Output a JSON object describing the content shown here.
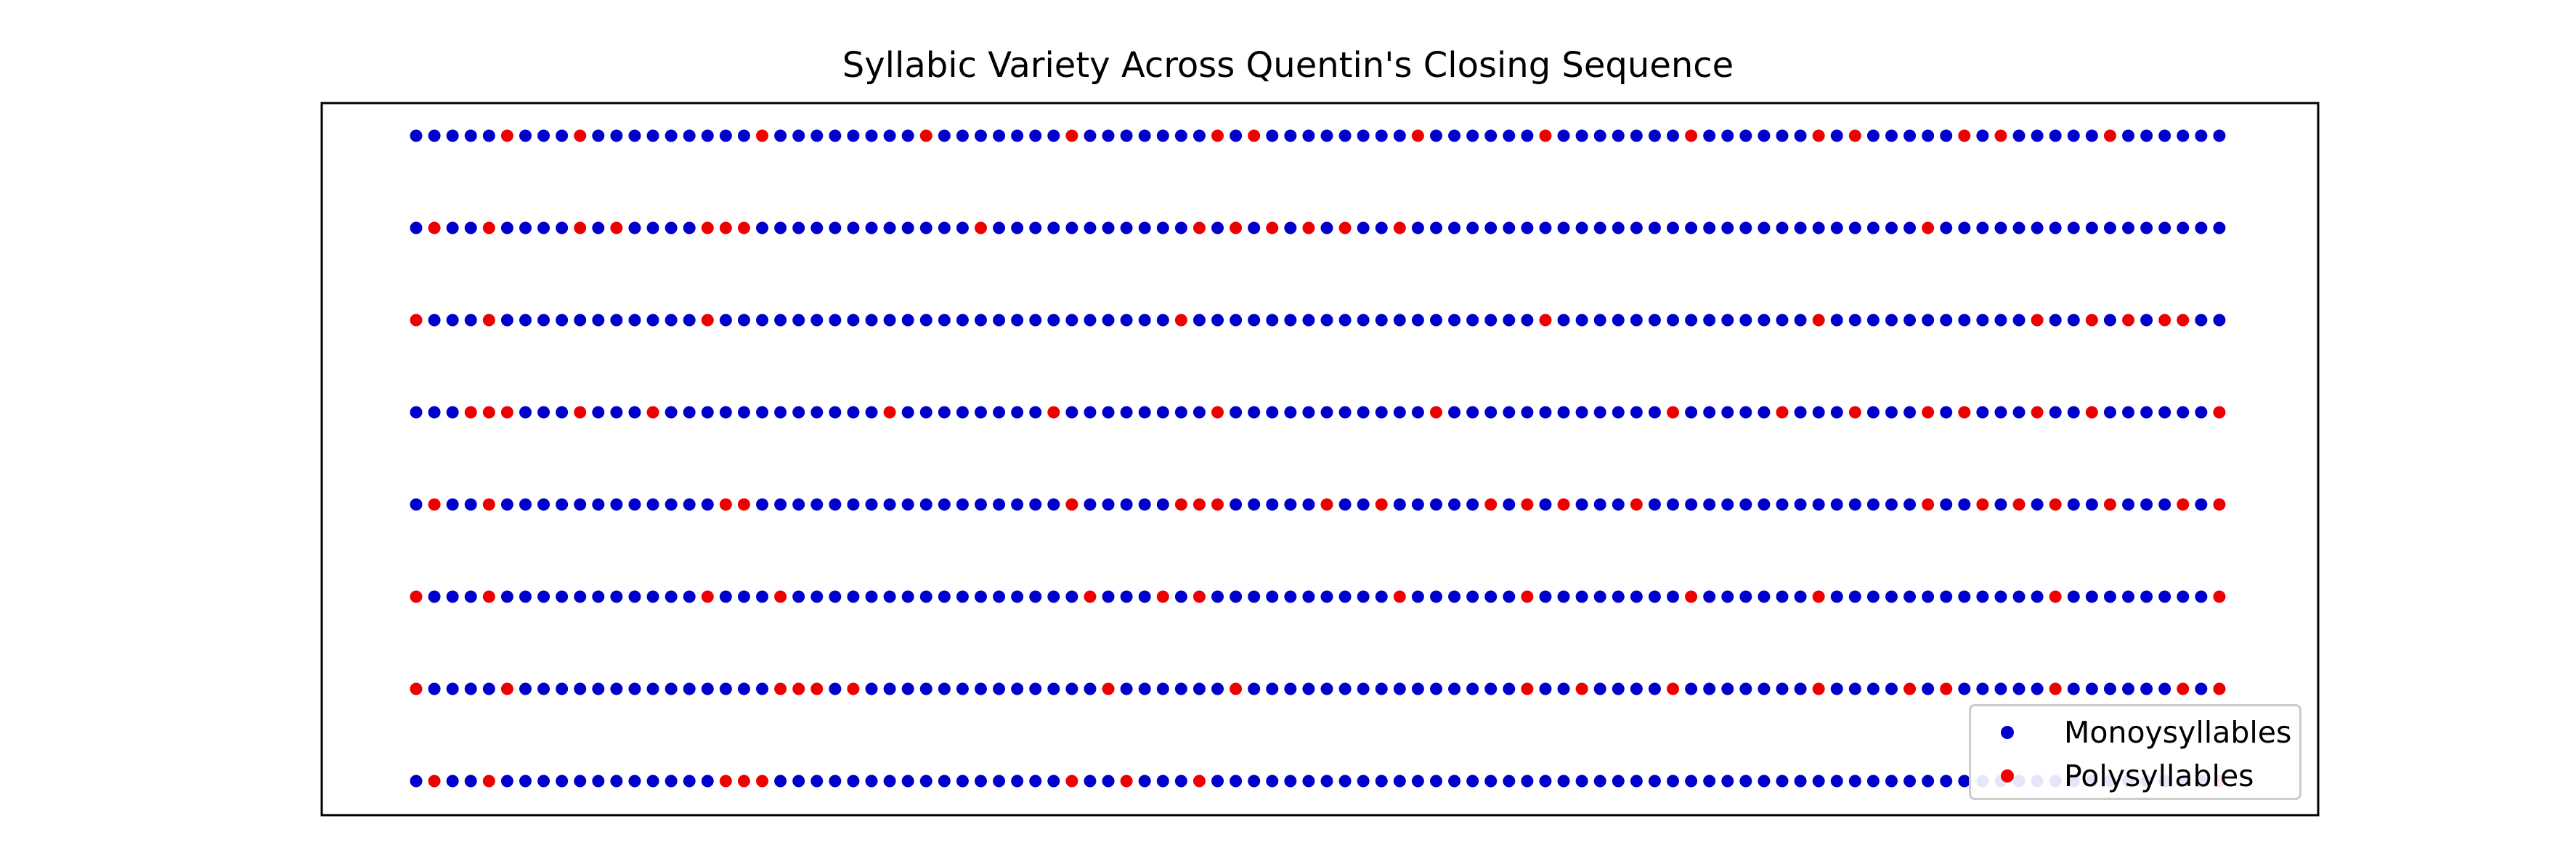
{
  "chart_data": {
    "type": "scatter",
    "title": "Syllabic Variety Across Quentin's Closing Sequence",
    "xlabel": "",
    "ylabel": "",
    "grid": false,
    "axes_ticks": false,
    "legend_placement": "lower-right",
    "words_per_row": 100,
    "series": [
      {
        "name": "Monoysyllables",
        "color": "#0000cc"
      },
      {
        "name": "Polysyllables",
        "color": "#ee0000"
      }
    ],
    "rows": [
      "0000010001000000000100000000100000001000000010100000000100000010000000100000010100000101000001000000",
      "0100100001010000111000000000000100000000000101010101001000000000000000000000000000010000000000000000",
      "1000100000000000100000000000000000000000001000000000000000000010000000000000010000000000010010101100",
      "0001110001000100000000000010000000010000000010000000000010000000000001000001000100010100010010000001",
      "0100100000000000011000000000000000001000001110000010010000010101000100000000000000010010101001000101",
      "1000100000000000100010000000000000000100010100000000001000000100000000100000010000000000001000000001",
      "1000010000000000000011101000000000000010000001000000000000000100100001000000010000101000001000000101",
      "0100100000000000011100000000000000001001000100000000000000000000000000000000000000000000000000000001"
    ]
  }
}
